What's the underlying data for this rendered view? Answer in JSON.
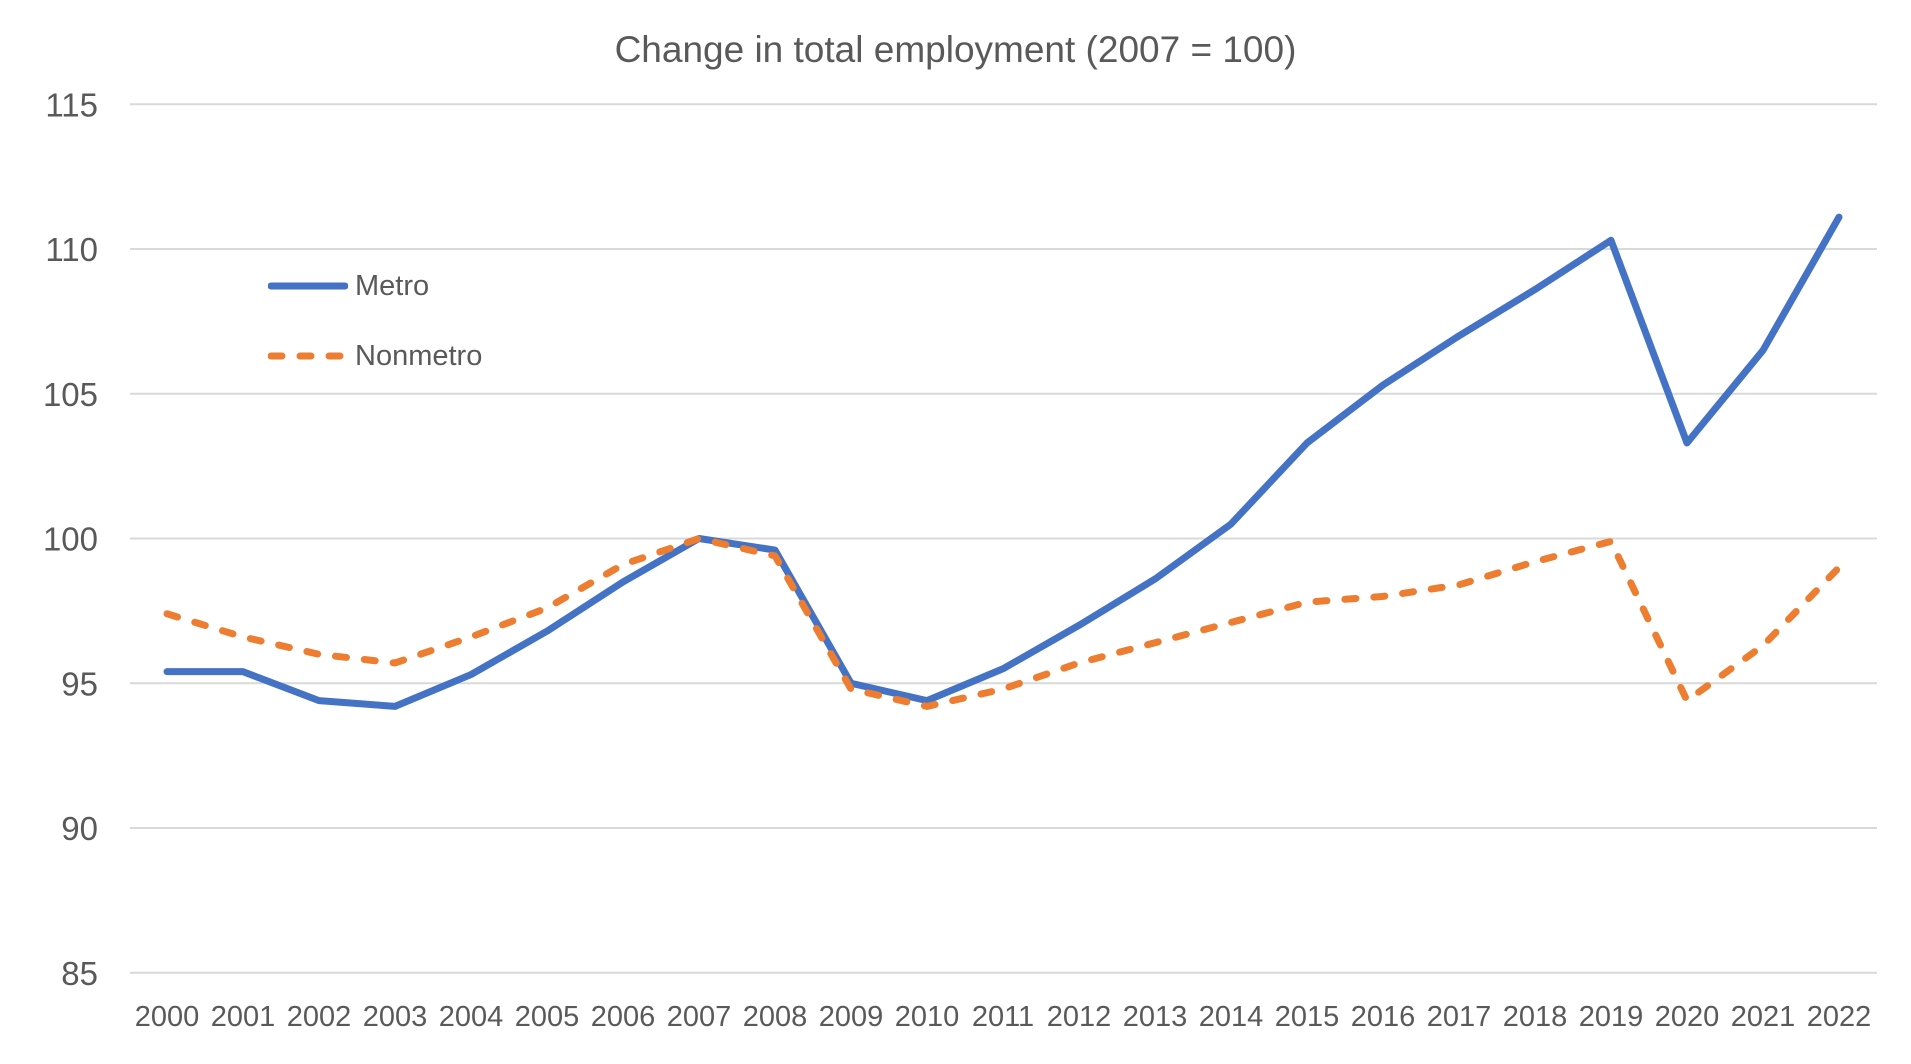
{
  "title": "Change in total employment (2007 = 100)",
  "colors": {
    "metro": "#4472C4",
    "nonmetro": "#ED7D31",
    "text": "#595959",
    "gridline": "#D9D9D9",
    "background": "#FFFFFF"
  },
  "legend": {
    "items": [
      {
        "label": "Metro",
        "series": "Metro",
        "style": "solid"
      },
      {
        "label": "Nonmetro",
        "series": "Nonmetro",
        "style": "dashed"
      }
    ],
    "position": "upper-left-inside"
  },
  "chart_data": {
    "type": "line",
    "title": "Change in total employment (2007 = 100)",
    "x": [
      2000,
      2001,
      2002,
      2003,
      2004,
      2005,
      2006,
      2007,
      2008,
      2009,
      2010,
      2011,
      2012,
      2013,
      2014,
      2015,
      2016,
      2017,
      2018,
      2019,
      2020,
      2021,
      2022
    ],
    "series": [
      {
        "name": "Metro",
        "color": "#4472C4",
        "style": "solid",
        "values": [
          95.4,
          95.4,
          94.4,
          94.2,
          95.3,
          96.8,
          98.5,
          100.0,
          99.6,
          95.0,
          94.4,
          95.5,
          97.0,
          98.6,
          100.5,
          103.3,
          105.3,
          107.0,
          108.6,
          110.3,
          103.3,
          106.5,
          111.1
        ]
      },
      {
        "name": "Nonmetro",
        "color": "#ED7D31",
        "style": "dashed",
        "values": [
          97.4,
          96.6,
          96.0,
          95.7,
          96.6,
          97.6,
          99.1,
          100.0,
          99.4,
          94.8,
          94.2,
          94.8,
          95.7,
          96.4,
          97.1,
          97.8,
          98.0,
          98.4,
          99.2,
          99.9,
          94.4,
          96.3,
          99.0
        ]
      }
    ],
    "xlabel": "",
    "ylabel": "",
    "ylim": [
      85,
      115
    ],
    "ytick_step": 5,
    "grid": "horizontal-only",
    "legend_position": "upper-left-inside"
  }
}
